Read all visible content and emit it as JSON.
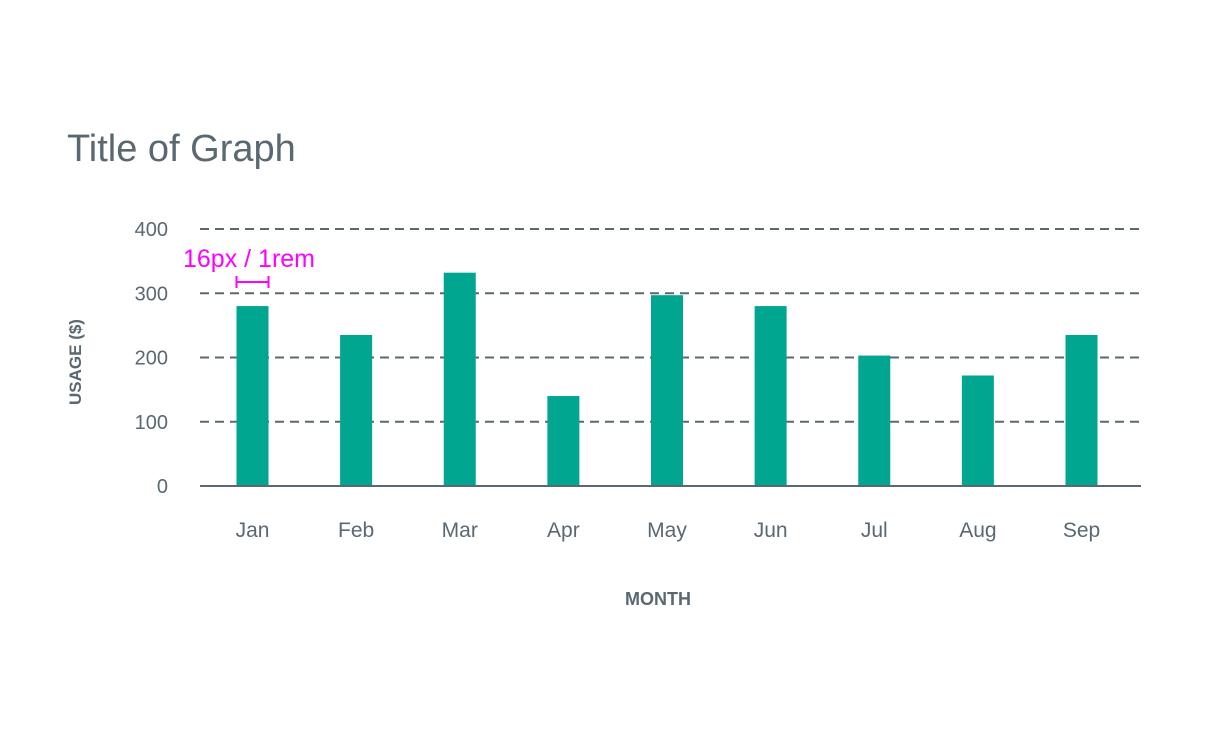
{
  "chart_data": {
    "type": "bar",
    "title": "Title of Graph",
    "xlabel": "MONTH",
    "ylabel": "USAGE ($)",
    "categories": [
      "Jan",
      "Feb",
      "Mar",
      "Apr",
      "May",
      "Jun",
      "Jul",
      "Aug",
      "Sep"
    ],
    "values": [
      280,
      235,
      332,
      140,
      297,
      280,
      203,
      172,
      235
    ],
    "ylim": [
      0,
      400
    ],
    "yticks": [
      0,
      100,
      200,
      300,
      400
    ],
    "grid": true,
    "annotation": "16px / 1rem",
    "colors": {
      "bar": "#00a68f",
      "text": "#5a6872",
      "grid": "#5a6872",
      "annotation": "#ff00ff"
    }
  }
}
